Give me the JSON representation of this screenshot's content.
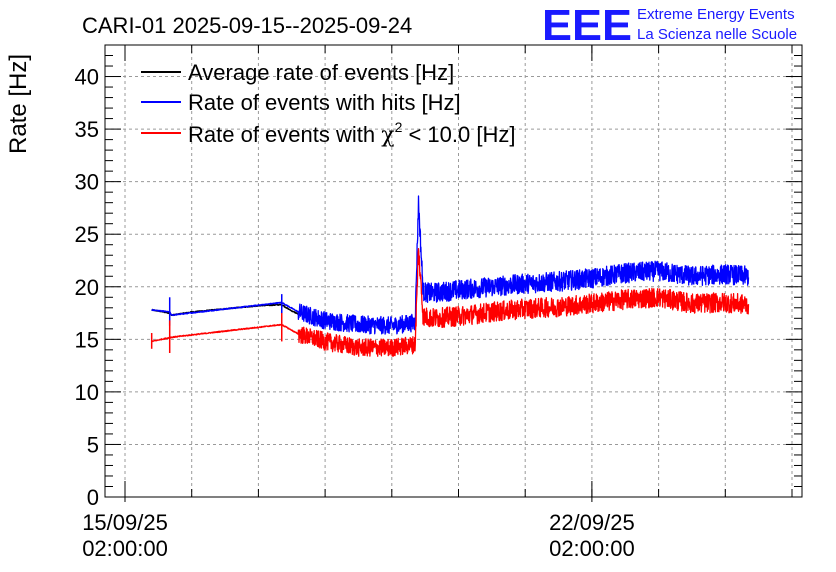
{
  "colors": {
    "average": "#000000",
    "hits": "#0000ff",
    "chi2": "#ff0000",
    "logo": "#1a1aff",
    "grid": "#9a9a9a"
  },
  "logo": {
    "mark": "EEE",
    "line1": "Extreme Energy Events",
    "line2": "La Scienza nelle Scuole"
  },
  "chart_data": {
    "type": "line",
    "title": "CARI-01 2025-09-15--2025-09-24",
    "ylabel": "Rate [Hz]",
    "xlabel": "",
    "ylim": [
      0,
      43
    ],
    "xlim_days": [
      -0.3,
      10.15
    ],
    "yticks": [
      0,
      5,
      10,
      15,
      20,
      25,
      30,
      35,
      40
    ],
    "yticklabels": [
      "0",
      "5",
      "10",
      "15",
      "20",
      "25",
      "30",
      "35",
      "40"
    ],
    "xticks": [
      {
        "day": 0,
        "line1": "15/09/25",
        "line2": "02:00:00"
      },
      {
        "day": 7,
        "line1": "22/09/25",
        "line2": "02:00:00"
      }
    ],
    "grid": true,
    "legend_position": "top-left",
    "legend": {
      "average": "Average rate of events [Hz]",
      "hits": "Rate of events with hits [Hz]",
      "chi2_pre": "Rate of events with ",
      "chi2_sym": "χ",
      "chi2_sup": "2",
      "chi2_post": " < 10.0 [Hz]"
    },
    "series": [
      {
        "name": "Average rate of events [Hz]",
        "color": "#000000",
        "x": [
          0.4,
          0.67,
          0.7,
          1.0,
          1.5,
          2.0,
          2.35,
          2.42,
          2.5,
          2.6
        ],
        "y": [
          17.8,
          17.5,
          17.3,
          17.6,
          17.9,
          18.2,
          18.3,
          18.0,
          17.7,
          17.4
        ]
      },
      {
        "name": "Rate of events with hits [Hz]",
        "color": "#0000ff",
        "x": [
          0.4,
          0.67,
          0.7,
          2.35,
          2.6,
          3.0,
          3.5,
          4.0,
          4.35,
          4.4,
          4.47,
          4.6,
          5.0,
          5.5,
          6.0,
          6.5,
          7.0,
          7.5,
          8.0,
          8.5,
          9.0,
          9.35
        ],
        "y": [
          17.8,
          17.6,
          17.3,
          18.5,
          17.6,
          16.8,
          16.4,
          16.3,
          16.6,
          28.0,
          19.5,
          19.4,
          19.7,
          20.0,
          20.3,
          20.5,
          20.8,
          21.3,
          21.5,
          21.0,
          21.2,
          21.0
        ]
      },
      {
        "name": "Rate of events with chi2 < 10.0 [Hz]",
        "color": "#ff0000",
        "x": [
          0.4,
          0.7,
          2.35,
          2.6,
          3.0,
          3.5,
          4.0,
          4.35,
          4.4,
          4.47,
          4.6,
          5.0,
          5.5,
          6.0,
          6.5,
          7.0,
          7.5,
          8.0,
          8.5,
          9.0,
          9.35
        ],
        "y": [
          14.8,
          15.2,
          16.4,
          15.5,
          14.8,
          14.2,
          14.2,
          14.5,
          23.5,
          17.2,
          17.0,
          17.2,
          17.6,
          17.9,
          18.1,
          18.4,
          18.8,
          19.0,
          18.4,
          18.5,
          18.3
        ]
      }
    ]
  }
}
